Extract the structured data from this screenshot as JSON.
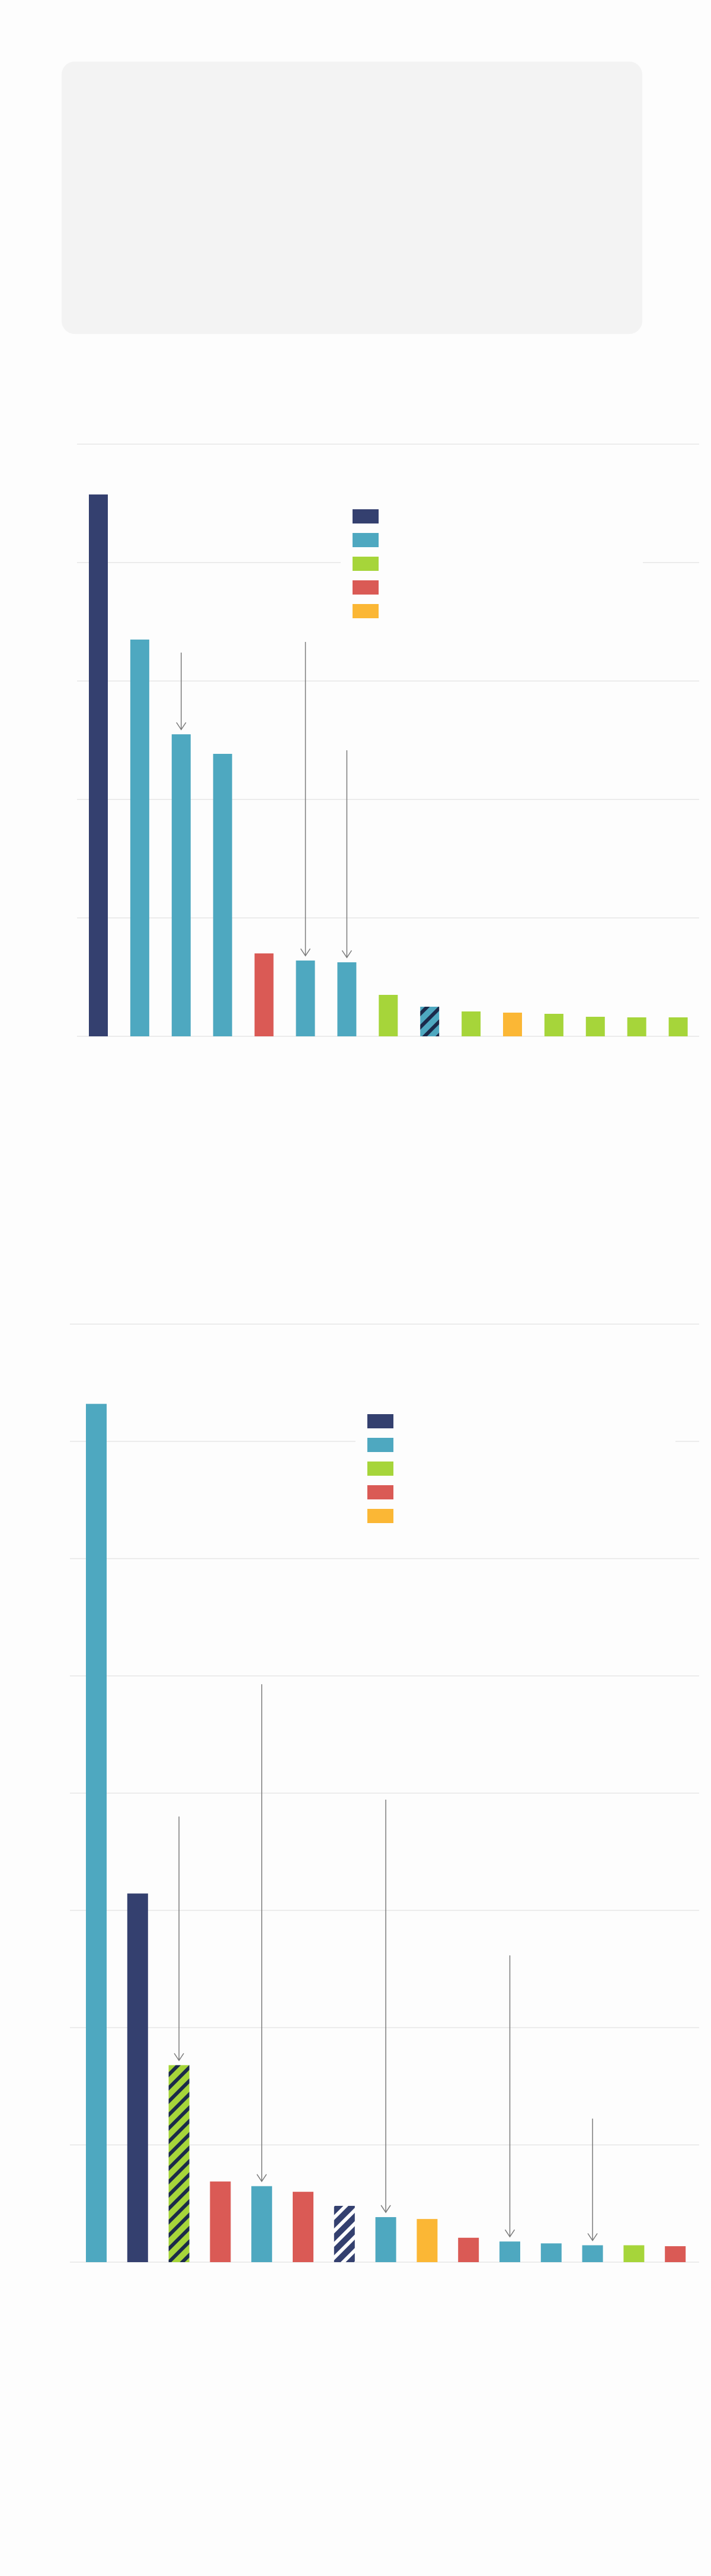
{
  "colors": {
    "navy": "#34406f",
    "teal": "#4ea8c0",
    "lime": "#a6d53a",
    "red": "#da5a55",
    "orange": "#fbb735",
    "grid": "#e6e6e6",
    "card": "#f3f3f3",
    "arrow": "#7a7a7a"
  },
  "legend": {
    "entries": [
      {
        "color": "navy"
      },
      {
        "color": "teal"
      },
      {
        "color": "lime"
      },
      {
        "color": "red"
      },
      {
        "color": "orange"
      }
    ]
  },
  "chart_data": [
    {
      "type": "bar",
      "title": "",
      "xlabel": "",
      "ylabel": "",
      "ylim": [
        0,
        100
      ],
      "grid": true,
      "legend_position": "top-center",
      "values": [
        91.5,
        67,
        51,
        47.7,
        14,
        12.8,
        12.5,
        7,
        5,
        4.2,
        4,
        3.8,
        3.3,
        3.2,
        3.2
      ],
      "colors": [
        "navy",
        "teal",
        "teal",
        "teal",
        "red",
        "teal",
        "teal",
        "lime",
        "teal",
        "lime",
        "orange",
        "lime",
        "lime",
        "lime",
        "lime"
      ],
      "hatched": [
        false,
        false,
        false,
        false,
        false,
        false,
        false,
        false,
        true,
        false,
        false,
        false,
        false,
        false,
        false
      ],
      "arrows": [
        {
          "bar": 2,
          "length": 13
        },
        {
          "bar": 5,
          "length": 53
        },
        {
          "bar": 6,
          "length": 35
        }
      ]
    },
    {
      "type": "bar",
      "title": "",
      "xlabel": "",
      "ylabel": "",
      "ylim": [
        0,
        100
      ],
      "grid": true,
      "legend_position": "top-center",
      "values": [
        91.5,
        39.3,
        21,
        8.6,
        8.1,
        7.5,
        6,
        4.8,
        4.6,
        2.6,
        2.2,
        2,
        1.8,
        1.8,
        1.7
      ],
      "colors": [
        "teal",
        "navy",
        "lime",
        "red",
        "teal",
        "red",
        "navy",
        "teal",
        "orange",
        "red",
        "teal",
        "teal",
        "teal",
        "lime",
        "red"
      ],
      "hatched": [
        false,
        false,
        true,
        false,
        false,
        false,
        true,
        false,
        false,
        false,
        false,
        false,
        false,
        false,
        false
      ],
      "arrows": [
        {
          "bar": 2,
          "length": 26
        },
        {
          "bar": 4,
          "length": 53
        },
        {
          "bar": 7,
          "length": 44
        },
        {
          "bar": 10,
          "length": 30
        },
        {
          "bar": 12,
          "length": 13
        }
      ]
    }
  ]
}
